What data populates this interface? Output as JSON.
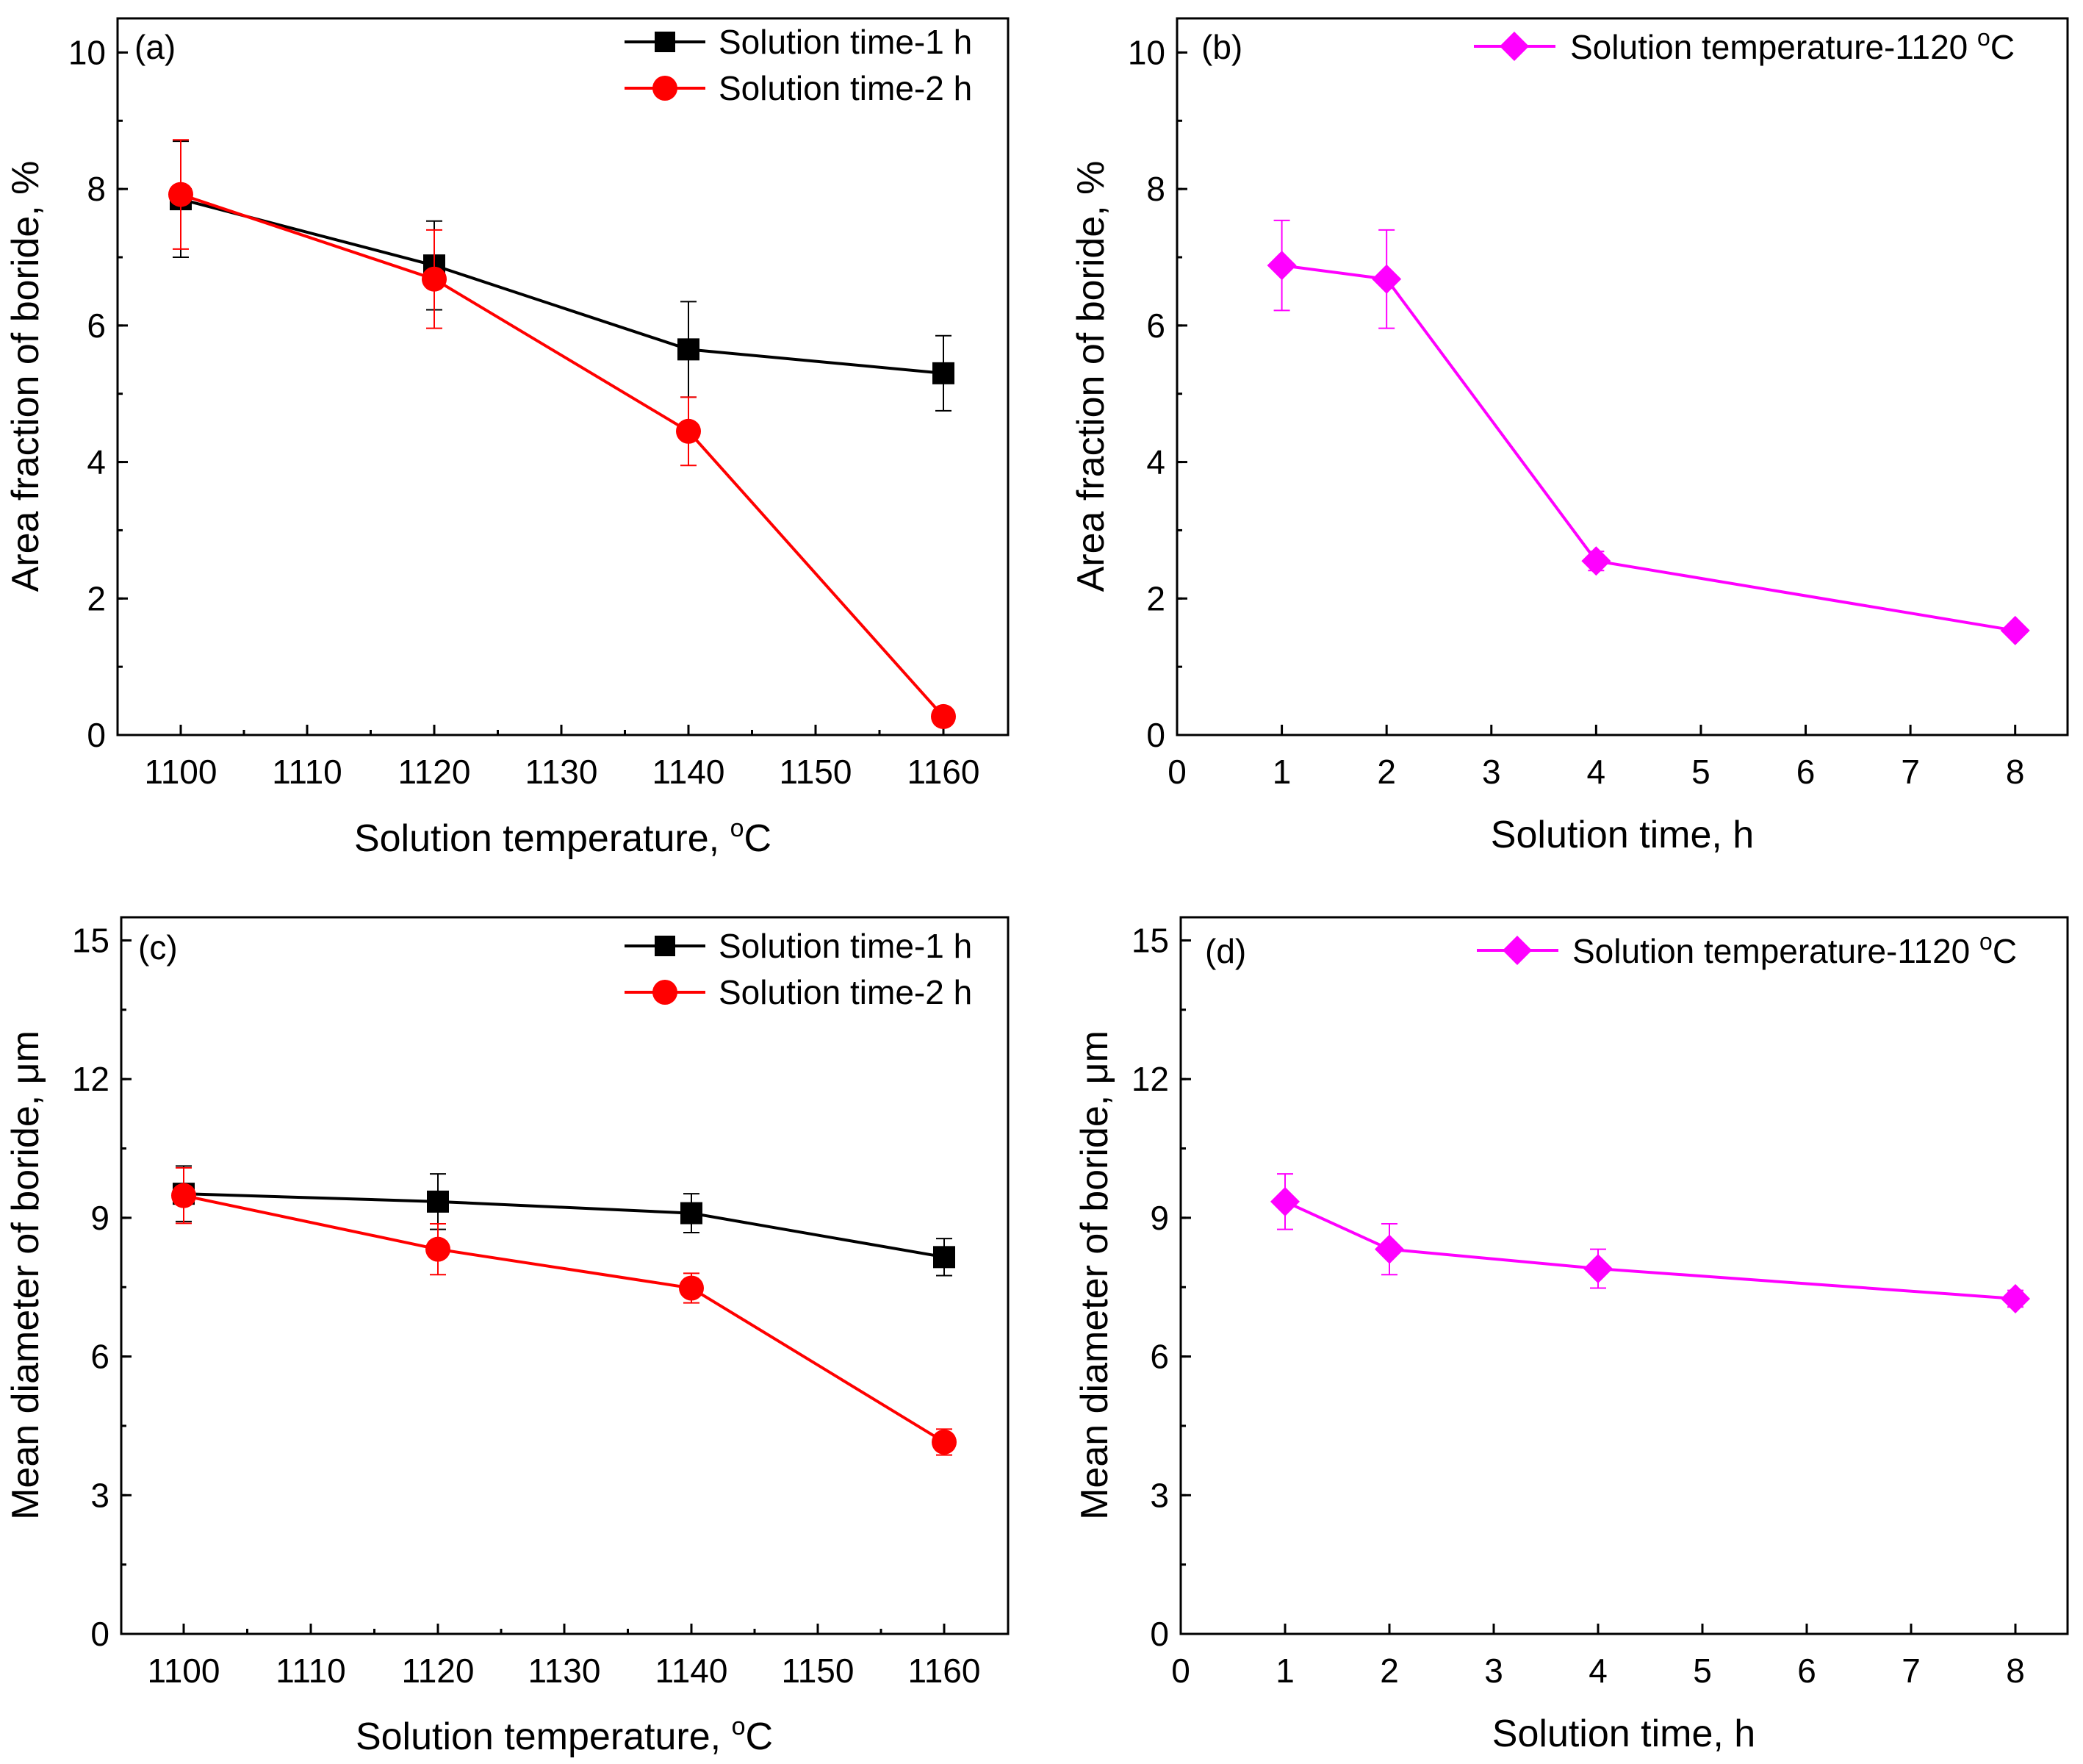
{
  "figure": {
    "panels": [
      {
        "id": "a",
        "label": "(a)",
        "xlabel": "Solution temperature, ",
        "xlabel_sup": "o",
        "xlabel_suffix": "C",
        "ylabel": "Area fraction of boride, %",
        "legend": [
          "Solution time-1 h",
          "Solution time-2 h"
        ],
        "x_ticks": [
          "1100",
          "1110",
          "1120",
          "1130",
          "1140",
          "1150",
          "1160"
        ],
        "y_ticks": [
          "0",
          "2",
          "4",
          "6",
          "8",
          "10"
        ]
      },
      {
        "id": "b",
        "label": "(b)",
        "xlabel": "Solution time, h",
        "ylabel": "Area fraction of boride, %",
        "legend": [
          "Solution temperature-1120 "
        ],
        "legend_sup": "o",
        "legend_suffix": "C",
        "x_ticks": [
          "0",
          "1",
          "2",
          "3",
          "4",
          "5",
          "6",
          "7",
          "8"
        ],
        "y_ticks": [
          "0",
          "2",
          "4",
          "6",
          "8",
          "10"
        ]
      },
      {
        "id": "c",
        "label": "(c)",
        "xlabel": "Solution temperature, ",
        "xlabel_sup": "o",
        "xlabel_suffix": "C",
        "ylabel": "Mean diameter of boride, μm",
        "legend": [
          "Solution time-1 h",
          "Solution time-2 h"
        ],
        "x_ticks": [
          "1100",
          "1110",
          "1120",
          "1130",
          "1140",
          "1150",
          "1160"
        ],
        "y_ticks": [
          "0",
          "3",
          "6",
          "9",
          "12",
          "15"
        ]
      },
      {
        "id": "d",
        "label": "(d)",
        "xlabel": "Solution time, h",
        "ylabel": "Mean diameter of boride, μm",
        "legend": [
          "Solution temperature-1120 "
        ],
        "legend_sup": "o",
        "legend_suffix": "C",
        "x_ticks": [
          "0",
          "1",
          "2",
          "3",
          "4",
          "5",
          "6",
          "7",
          "8"
        ],
        "y_ticks": [
          "0",
          "3",
          "6",
          "9",
          "12",
          "15"
        ]
      }
    ]
  },
  "chart_data": [
    {
      "panel": "a",
      "type": "line",
      "title": "",
      "xlabel": "Solution temperature, oC",
      "ylabel": "Area fraction of boride, %",
      "xlim": [
        1095,
        1165
      ],
      "ylim": [
        0,
        10.5
      ],
      "series": [
        {
          "name": "Solution time-1 h",
          "color": "#000000",
          "marker": "square",
          "x": [
            1100,
            1120,
            1140,
            1160
          ],
          "y": [
            7.85,
            6.88,
            5.65,
            5.3
          ],
          "err": [
            0.85,
            0.65,
            0.7,
            0.55
          ]
        },
        {
          "name": "Solution time-2 h",
          "color": "#ff0000",
          "marker": "circle",
          "x": [
            1100,
            1120,
            1140,
            1160
          ],
          "y": [
            7.92,
            6.68,
            4.45,
            0.27
          ],
          "err": [
            0.8,
            0.72,
            0.5,
            0.03
          ]
        }
      ]
    },
    {
      "panel": "b",
      "type": "line",
      "title": "",
      "xlabel": "Solution time, h",
      "ylabel": "Area fraction of boride, %",
      "xlim": [
        0,
        8.5
      ],
      "ylim": [
        0,
        10.5
      ],
      "series": [
        {
          "name": "Solution temperature-1120 oC",
          "color": "#ff00ff",
          "marker": "diamond",
          "x": [
            1,
            2,
            4,
            8
          ],
          "y": [
            6.88,
            6.68,
            2.55,
            1.53
          ],
          "err": [
            0.66,
            0.72,
            0.14,
            0.05
          ]
        }
      ]
    },
    {
      "panel": "c",
      "type": "line",
      "title": "",
      "xlabel": "Solution temperature, oC",
      "ylabel": "Mean diameter of boride, μm",
      "xlim": [
        1095,
        1165
      ],
      "ylim": [
        0,
        15.5
      ],
      "series": [
        {
          "name": "Solution time-1 h",
          "color": "#000000",
          "marker": "square",
          "x": [
            1100,
            1120,
            1140,
            1160
          ],
          "y": [
            9.52,
            9.35,
            9.1,
            8.15
          ],
          "err": [
            0.6,
            0.6,
            0.42,
            0.4
          ]
        },
        {
          "name": "Solution time-2 h",
          "color": "#ff0000",
          "marker": "circle",
          "x": [
            1100,
            1120,
            1140,
            1160
          ],
          "y": [
            9.48,
            8.32,
            7.48,
            4.15
          ],
          "err": [
            0.6,
            0.55,
            0.32,
            0.28
          ]
        }
      ]
    },
    {
      "panel": "d",
      "type": "line",
      "title": "",
      "xlabel": "Solution time, h",
      "ylabel": "Mean diameter of boride, μm",
      "xlim": [
        0,
        8.5
      ],
      "ylim": [
        0,
        15.5
      ],
      "series": [
        {
          "name": "Solution temperature-1120 oC",
          "color": "#ff00ff",
          "marker": "diamond",
          "x": [
            1,
            2,
            4,
            8
          ],
          "y": [
            9.35,
            8.32,
            7.9,
            7.25
          ],
          "err": [
            0.6,
            0.55,
            0.42,
            0.18
          ]
        }
      ]
    }
  ]
}
